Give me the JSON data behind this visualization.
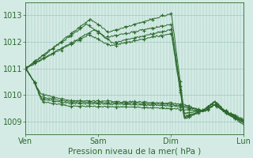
{
  "bg_color": "#d4ebe5",
  "plot_bg": "#d4ebe5",
  "grid_color": "#9fc8bc",
  "line_color": "#2d6a2d",
  "marker_color": "#2d6a2d",
  "xlabel": "Pression niveau de la mer( hPa )",
  "xlabel_color": "#2d6a2d",
  "tick_color": "#2d6a2d",
  "spine_color": "#2d6a2d",
  "xtick_labels": [
    "Ven",
    "Sam",
    "Dim",
    "Lun"
  ],
  "xtick_positions": [
    0.0,
    0.333,
    0.667,
    1.0
  ],
  "ytick_labels": [
    "1009",
    "1010",
    "1011",
    "1012",
    "1013"
  ],
  "ytick_values": [
    1009,
    1010,
    1011,
    1012,
    1013
  ],
  "ylim": [
    1008.55,
    1013.45
  ],
  "xlim": [
    0.0,
    1.0
  ],
  "line_width": 0.7,
  "marker_size": 3.0,
  "marker_step": 12
}
